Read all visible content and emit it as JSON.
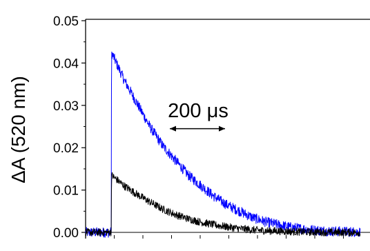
{
  "chart_data": {
    "type": "line",
    "title": "",
    "xlabel": "",
    "ylabel": "ΔA (520 nm)",
    "ylim": [
      -0.003,
      0.05
    ],
    "y_ticks": [
      0.0,
      0.01,
      0.02,
      0.03,
      0.04,
      0.05
    ],
    "y_tick_labels": [
      "0.00",
      "0.01",
      "0.02",
      "0.03",
      "0.04",
      "0.05"
    ],
    "x_range_us": [
      -50,
      1100
    ],
    "x_minor_tick_count": 9,
    "grid": false,
    "legend": "none",
    "zero_line": true,
    "annotation": {
      "text": "200 μs",
      "scale_bar_us": 200,
      "scale_bar_y": 0.0245
    },
    "series": [
      {
        "color": "#0000ff",
        "noise": 0.0012,
        "points": [
          [
            -50,
            0.0
          ],
          [
            50,
            0.0
          ],
          [
            51,
            0.0425
          ],
          [
            100,
            0.036
          ],
          [
            150,
            0.0305
          ],
          [
            200,
            0.025
          ],
          [
            250,
            0.0205
          ],
          [
            300,
            0.017
          ],
          [
            350,
            0.0135
          ],
          [
            400,
            0.011
          ],
          [
            450,
            0.0085
          ],
          [
            500,
            0.0065
          ],
          [
            550,
            0.005
          ],
          [
            600,
            0.0035
          ],
          [
            650,
            0.0025
          ],
          [
            700,
            0.0018
          ],
          [
            750,
            0.0012
          ],
          [
            800,
            0.0008
          ],
          [
            850,
            0.0005
          ],
          [
            900,
            0.0003
          ],
          [
            950,
            0.0002
          ],
          [
            1020,
            0.0001
          ]
        ]
      },
      {
        "color": "#000000",
        "noise": 0.0009,
        "points": [
          [
            -50,
            0.0
          ],
          [
            50,
            0.0
          ],
          [
            51,
            0.0135
          ],
          [
            100,
            0.011
          ],
          [
            150,
            0.009
          ],
          [
            200,
            0.0072
          ],
          [
            250,
            0.0055
          ],
          [
            300,
            0.0042
          ],
          [
            350,
            0.0032
          ],
          [
            400,
            0.0024
          ],
          [
            450,
            0.0018
          ],
          [
            500,
            0.0013
          ],
          [
            550,
            0.0009
          ],
          [
            600,
            0.0006
          ],
          [
            650,
            0.0004
          ],
          [
            700,
            0.0003
          ],
          [
            750,
            0.0002
          ],
          [
            800,
            0.0001
          ],
          [
            850,
            0.0001
          ],
          [
            900,
            0.0
          ],
          [
            950,
            0.0
          ],
          [
            1020,
            0.0
          ]
        ]
      }
    ]
  }
}
